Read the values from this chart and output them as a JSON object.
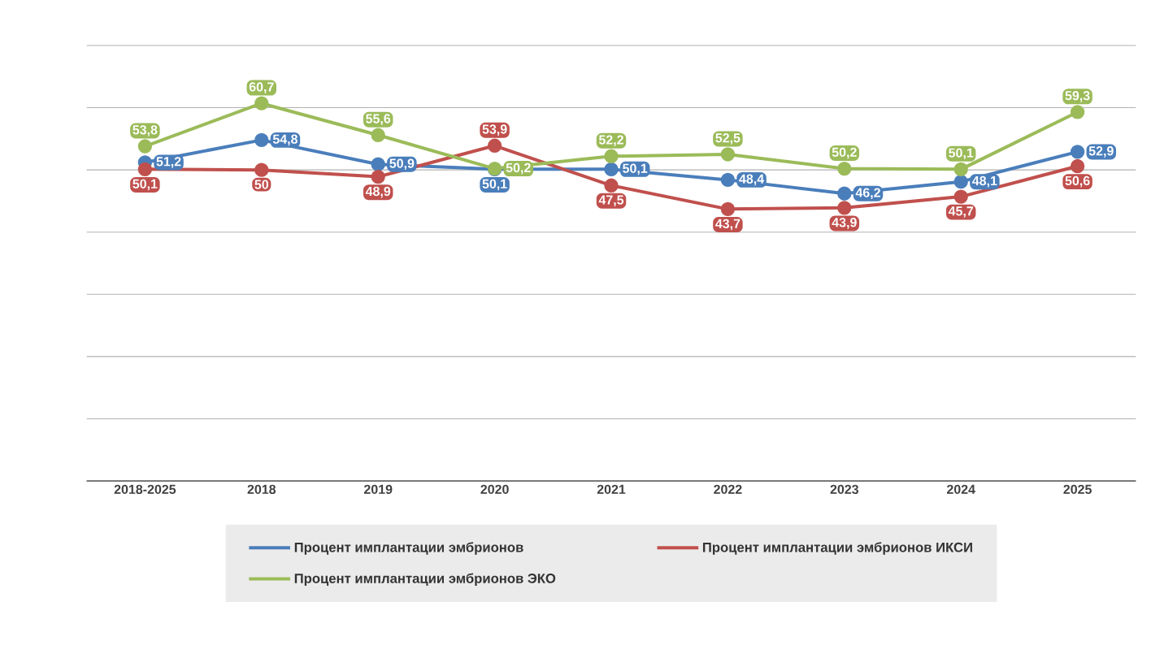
{
  "chart_data": {
    "type": "line",
    "categories": [
      "2018-2025",
      "2018",
      "2019",
      "2020",
      "2021",
      "2022",
      "2023",
      "2024",
      "2025"
    ],
    "series": [
      {
        "name": "Процент имплантации эмбрионов",
        "color": "#4a7ebb",
        "values": [
          51.2,
          54.8,
          50.9,
          50.1,
          50.1,
          48.4,
          46.2,
          48.1,
          52.9
        ],
        "value_labels": [
          "51,2",
          "54,8",
          "50,9",
          "50,1",
          "50,1",
          "48,4",
          "46,2",
          "48,1",
          "52,9"
        ]
      },
      {
        "name": "Процент имплантации эмбрионов  ИКСИ",
        "color": "#c0504d",
        "values": [
          50.1,
          50,
          48.9,
          53.9,
          47.5,
          43.7,
          43.9,
          45.7,
          50.6
        ],
        "value_labels": [
          "50,1",
          "50",
          "48,9",
          "53,9",
          "47,5",
          "43,7",
          "43,9",
          "45,7",
          "50,6"
        ]
      },
      {
        "name": "Процент имплантации эмбрионов  ЭКО",
        "color": "#9bbb59",
        "values": [
          53.8,
          60.7,
          55.6,
          50.2,
          52.2,
          52.5,
          50.2,
          50.1,
          59.3
        ],
        "value_labels": [
          "53,8",
          "60,7",
          "55,6",
          "50,2",
          "52,2",
          "52,5",
          "50,2",
          "50,1",
          "59,3"
        ]
      }
    ],
    "ylim": [
      0,
      70
    ],
    "yticks": [
      {
        "value": 0,
        "label": null
      },
      {
        "value": 10,
        "label": null
      },
      {
        "value": 20,
        "label": null
      },
      {
        "value": 30,
        "label": null
      },
      {
        "value": 40,
        "label": null
      },
      {
        "value": 50,
        "label": null
      },
      {
        "value": 60,
        "label": null
      },
      {
        "value": 70,
        "label": null
      }
    ],
    "tick_labels": "x",
    "grid": "y",
    "legend": "bottom",
    "marker": "circle",
    "line_style": "solid"
  }
}
